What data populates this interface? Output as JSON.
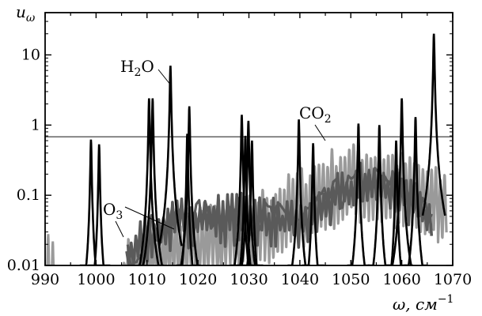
{
  "chart_data": {
    "type": "line",
    "xlabel": "ω, см",
    "xlabel_sup": "−1",
    "ylabel": "u",
    "ylabel_sub": "ω",
    "xlim": [
      990,
      1070
    ],
    "ylim": [
      0.01,
      40
    ],
    "yscale": "log",
    "x_ticks": [
      990,
      1000,
      1010,
      1020,
      1030,
      1040,
      1050,
      1060,
      1070
    ],
    "y_ticks": [
      {
        "value": 0.01,
        "label": "0.01"
      },
      {
        "value": 0.1,
        "label": "0.1"
      },
      {
        "value": 1,
        "label": "1"
      },
      {
        "value": 10,
        "label": "10"
      }
    ],
    "reference_line": {
      "y": 0.68,
      "color": "#6e6e6e"
    },
    "annotations": [
      {
        "text": "H",
        "sub": "2",
        "tail": "O",
        "target": [
          1014.5,
          2.0
        ]
      },
      {
        "text": "CO",
        "sub": "2",
        "tail": "",
        "target": [
          1045.0,
          0.7
        ]
      },
      {
        "text": "O",
        "sub": "3",
        "tail": "",
        "target": [
          1004.5,
          0.024
        ]
      }
    ],
    "series": [
      {
        "color": "#000000",
        "style": "peaks",
        "peaks": [
          {
            "x": 999.0,
            "y": 0.62
          },
          {
            "x": 1000.6,
            "y": 0.53
          },
          {
            "x": 1010.4,
            "y": 2.4
          },
          {
            "x": 1011.1,
            "y": 2.4
          },
          {
            "x": 1014.6,
            "y": 7.0
          },
          {
            "x": 1017.9,
            "y": 0.75
          },
          {
            "x": 1018.3,
            "y": 1.85
          },
          {
            "x": 1028.6,
            "y": 1.4
          },
          {
            "x": 1029.3,
            "y": 0.7
          },
          {
            "x": 1029.9,
            "y": 1.15
          },
          {
            "x": 1030.6,
            "y": 0.6
          },
          {
            "x": 1039.8,
            "y": 1.2
          },
          {
            "x": 1042.6,
            "y": 0.55
          },
          {
            "x": 1051.5,
            "y": 1.05
          },
          {
            "x": 1055.6,
            "y": 1.0
          },
          {
            "x": 1058.9,
            "y": 0.6
          },
          {
            "x": 1060.0,
            "y": 2.4
          },
          {
            "x": 1062.7,
            "y": 1.3
          },
          {
            "x": 1066.3,
            "y": 20.0
          }
        ]
      },
      {
        "color": "#9a9a9a",
        "style": "comb",
        "x_start": 1005.5,
        "x_end": 1068.5,
        "spacing": 0.85,
        "envelope": [
          [
            1005.5,
            0.02
          ],
          [
            1015,
            0.05
          ],
          [
            1030,
            0.09
          ],
          [
            1040,
            0.22
          ],
          [
            1047,
            0.45
          ],
          [
            1052,
            0.5
          ],
          [
            1058,
            0.42
          ],
          [
            1064,
            0.28
          ],
          [
            1068.5,
            0.2
          ]
        ],
        "floor": 0.01,
        "extra_peaks": [
          {
            "x": 990.6,
            "y": 0.028
          },
          {
            "x": 991.5,
            "y": 0.022
          }
        ]
      },
      {
        "color": "#5a5a5a",
        "style": "band",
        "x_start": 1006,
        "x_end": 1066,
        "spacing": 0.45,
        "envelope": [
          [
            1006,
            0.012
          ],
          [
            1010,
            0.03
          ],
          [
            1018,
            0.05
          ],
          [
            1030,
            0.055
          ],
          [
            1040,
            0.04
          ],
          [
            1047,
            0.1
          ],
          [
            1053,
            0.16
          ],
          [
            1060,
            0.13
          ],
          [
            1066,
            0.04
          ]
        ]
      }
    ]
  }
}
